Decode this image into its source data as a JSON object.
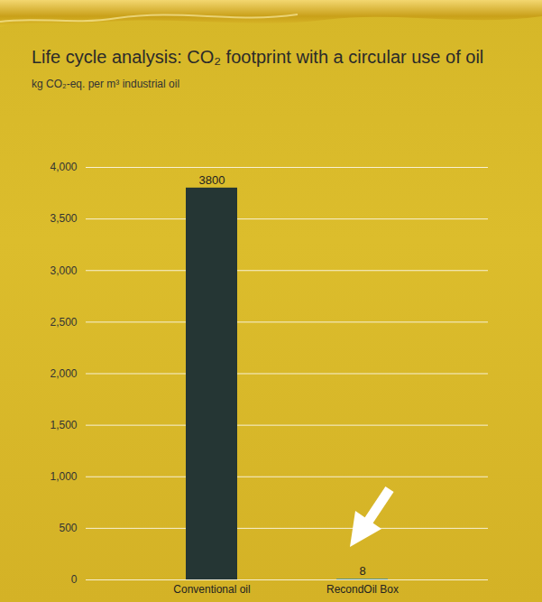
{
  "chart_data": {
    "type": "bar",
    "title": "Life cycle analysis: CO₂ footprint with a circular use of oil",
    "subtitle": "kg CO₂-eq. per m³ industrial oil",
    "categories": [
      "Conventional oil",
      "RecondOil Box"
    ],
    "values": [
      3800,
      8
    ],
    "colors": [
      "#253634",
      "#4d8f92"
    ],
    "ylim": [
      0,
      4000
    ],
    "yticks": [
      0,
      500,
      1000,
      1500,
      2000,
      2500,
      3000,
      3500,
      4000
    ],
    "grid": true,
    "data_labels": true
  }
}
